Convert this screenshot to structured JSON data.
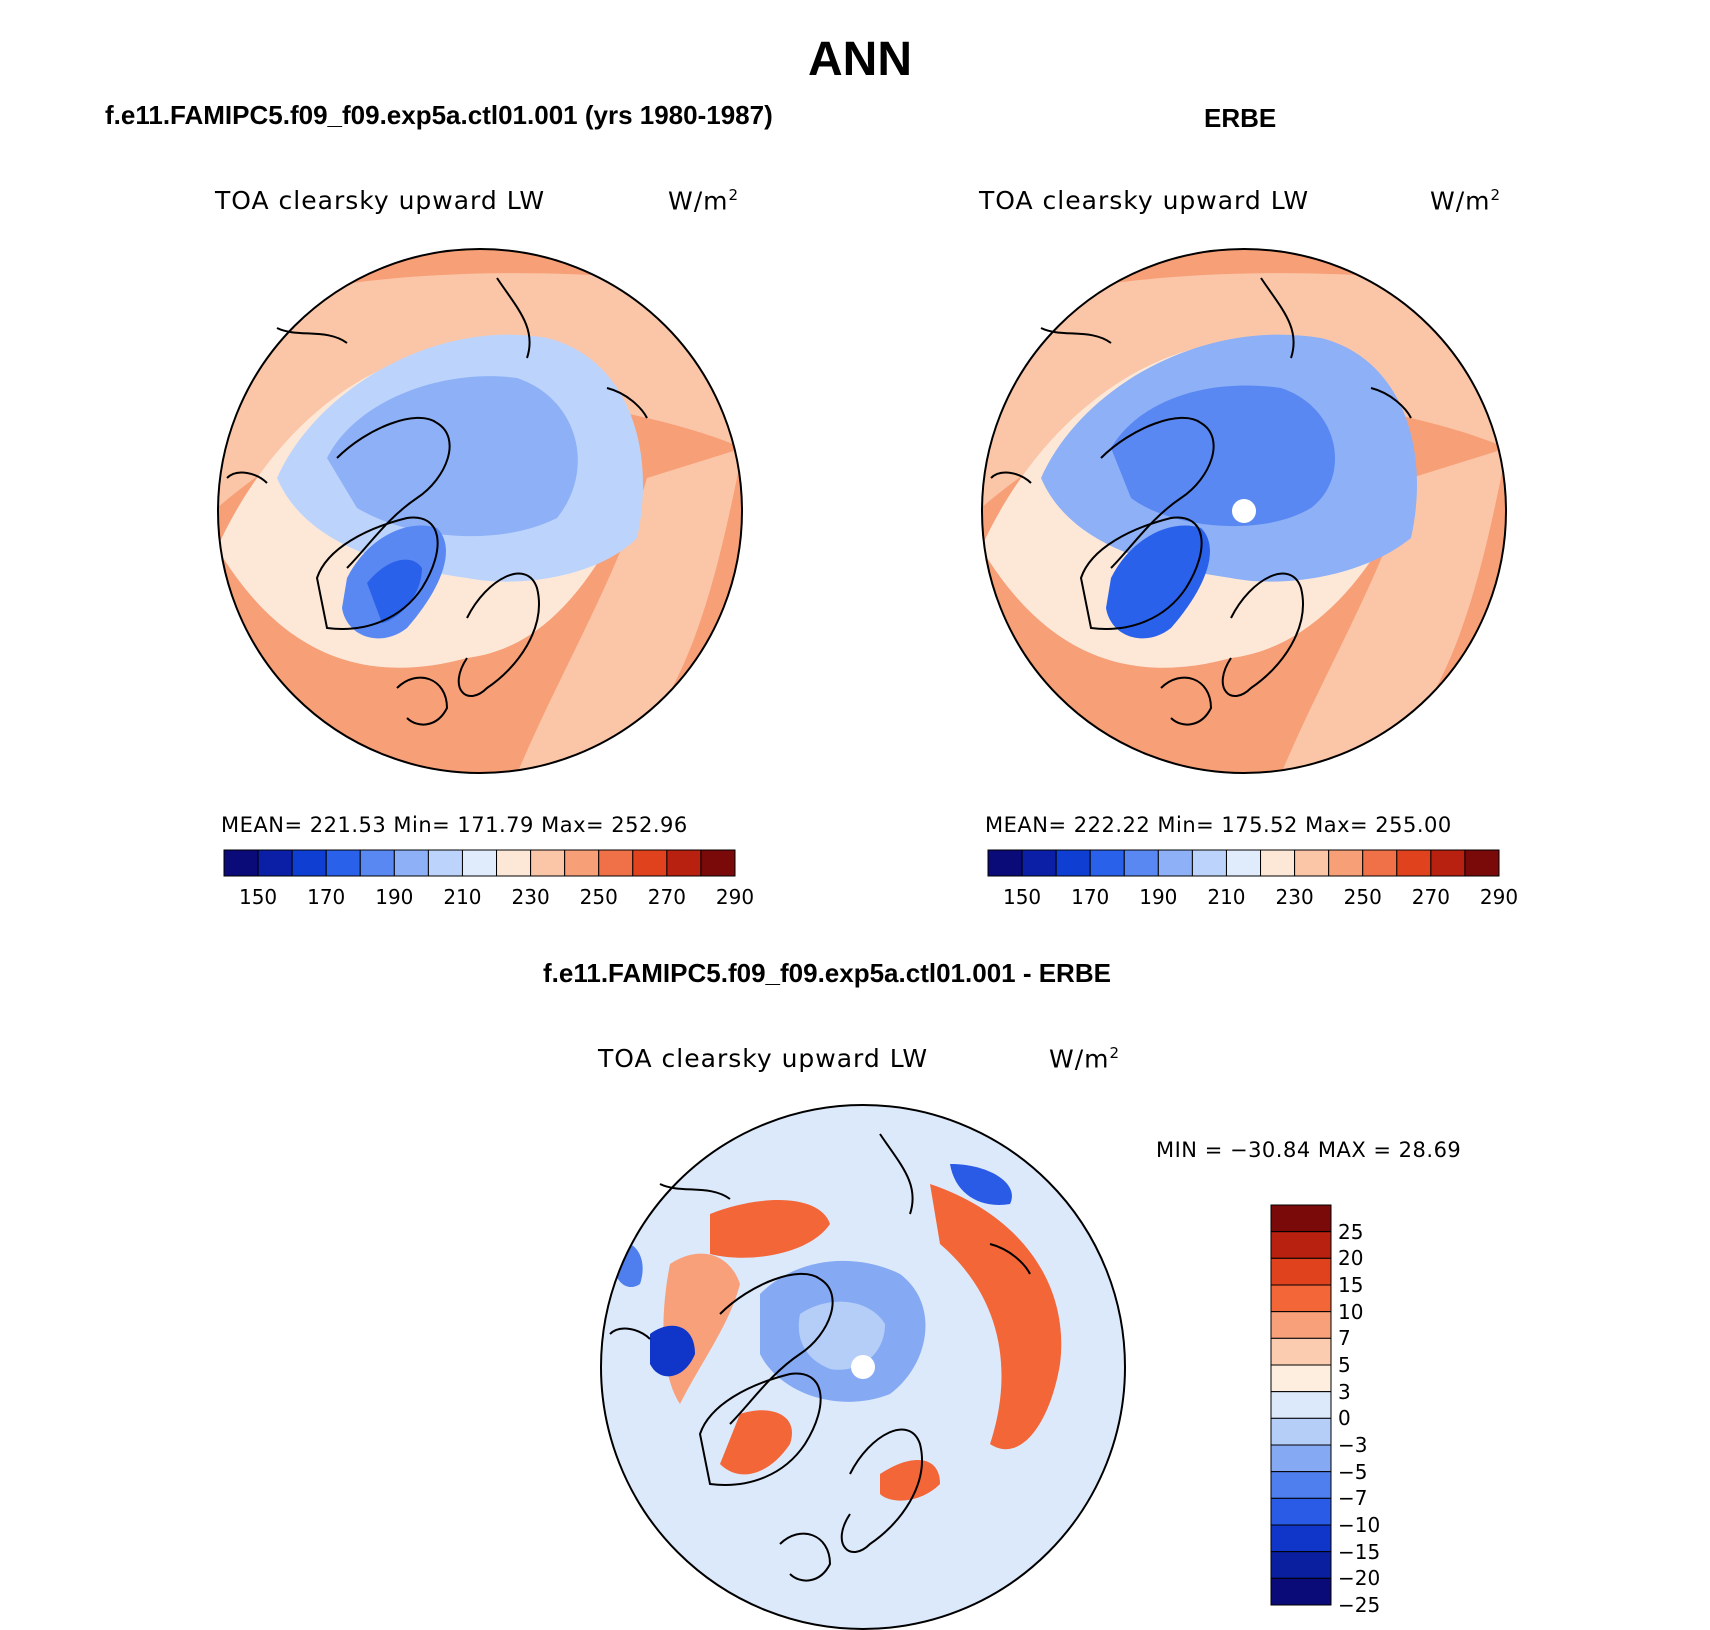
{
  "title": "ANN",
  "panels": [
    {
      "id": "model",
      "title": "f.e11.FAMIPC5.f09_f09.exp5a.ctl01.001 (yrs 1980-1987)",
      "variable": "TOA clearsky upward LW",
      "units_base": "W/m",
      "units_exp": "2",
      "stats": "MEAN= 221.53   Min= 171.79   Max= 252.96"
    },
    {
      "id": "obs",
      "title": "ERBE",
      "variable": "TOA clearsky upward LW",
      "units_base": "W/m",
      "units_exp": "2",
      "stats": "MEAN= 222.22   Min= 175.52   Max= 255.00"
    },
    {
      "id": "diff",
      "title": "f.e11.FAMIPC5.f09_f09.exp5a.ctl01.001 - ERBE",
      "variable": "TOA clearsky upward LW",
      "units_base": "W/m",
      "units_exp": "2",
      "stats": "MIN = −30.84 MAX =   28.69"
    }
  ],
  "colorbar_abs": {
    "colors": [
      "#0a0a78",
      "#0a1fa5",
      "#0f3fd2",
      "#2a61ea",
      "#5a88f2",
      "#8db0f7",
      "#bcd4fb",
      "#e0ecfc",
      "#fde8d8",
      "#fbc6a8",
      "#f79f77",
      "#f07048",
      "#e0421e",
      "#b8200f",
      "#7a0a0a"
    ],
    "ticks": [
      "150",
      "170",
      "190",
      "210",
      "230",
      "250",
      "270",
      "290"
    ]
  },
  "colorbar_diff": {
    "colors": [
      "#7a0a0a",
      "#b8200f",
      "#e0421e",
      "#f26638",
      "#f8a07a",
      "#fcccb0",
      "#fdeee0",
      "#dce9fb",
      "#b4cef8",
      "#85a9f3",
      "#4f7fee",
      "#2a5be6",
      "#0f36c8",
      "#0a1fa0",
      "#0a0a78"
    ],
    "ticks": [
      "25",
      "20",
      "15",
      "10",
      "7",
      "5",
      "3",
      "0",
      "−3",
      "−5",
      "−7",
      "−10",
      "−15",
      "−20",
      "−25"
    ]
  },
  "chart_data": [
    {
      "type": "heatmap",
      "projection": "north-polar-stereographic",
      "title": "f.e11.FAMIPC5.f09_f09.exp5a.ctl01.001 (yrs 1980-1987)",
      "variable": "TOA clearsky upward LW",
      "mean": 221.53,
      "min": 171.79,
      "max": 252.96,
      "colorbar_levels": [
        150,
        160,
        170,
        180,
        190,
        200,
        210,
        220,
        230,
        240,
        250,
        260,
        270,
        280,
        290
      ]
    },
    {
      "type": "heatmap",
      "projection": "north-polar-stereographic",
      "title": "ERBE",
      "variable": "TOA clearsky upward LW",
      "mean": 222.22,
      "min": 175.52,
      "max": 255.0,
      "colorbar_levels": [
        150,
        160,
        170,
        180,
        190,
        200,
        210,
        220,
        230,
        240,
        250,
        260,
        270,
        280,
        290
      ]
    },
    {
      "type": "heatmap",
      "projection": "north-polar-stereographic",
      "title": "f.e11.FAMIPC5.f09_f09.exp5a.ctl01.001 - ERBE",
      "variable": "TOA clearsky upward LW",
      "min": -30.84,
      "max": 28.69,
      "colorbar_levels": [
        -25,
        -20,
        -15,
        -10,
        -7,
        -5,
        -3,
        0,
        3,
        5,
        7,
        10,
        15,
        20,
        25
      ]
    }
  ]
}
